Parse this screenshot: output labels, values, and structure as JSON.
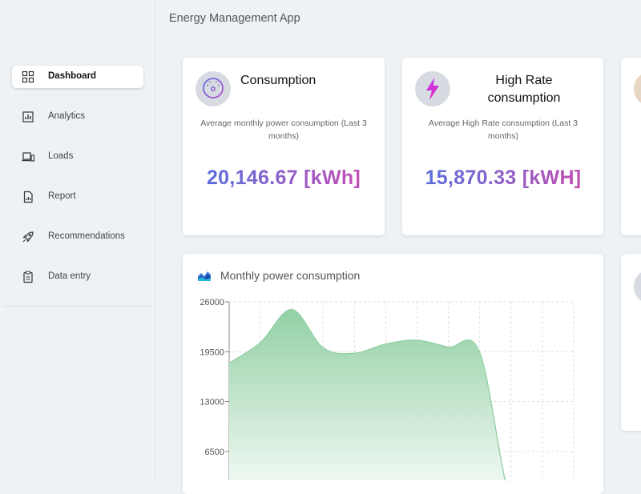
{
  "app_title": "Energy Management App",
  "sidebar": {
    "items": [
      {
        "label": "Dashboard",
        "icon": "dashboard-grid-icon",
        "active": true
      },
      {
        "label": "Analytics",
        "icon": "bar-chart-icon"
      },
      {
        "label": "Loads",
        "icon": "devices-icon"
      },
      {
        "label": "Report",
        "icon": "report-icon"
      },
      {
        "label": "Recommendations",
        "icon": "rocket-icon"
      },
      {
        "label": "Data entry",
        "icon": "clipboard-icon"
      }
    ]
  },
  "cards": [
    {
      "title": "Consumption",
      "icon": "speedometer-icon",
      "description": "Average monthly power consumption (Last 3 months)",
      "value": "20,146.67 [kWh]"
    },
    {
      "title": "High Rate consumption",
      "icon": "lightning-icon",
      "description": "Average High Rate consumption (Last 3 months)",
      "value": "15,870.33 [kWH]"
    }
  ],
  "chart": {
    "title": "Monthly power consumption",
    "icon": "area-chart-icon",
    "colors": {
      "line": "#8fd0a2",
      "fill_top": "#93d0a5",
      "fill_bottom": "#ffffff"
    }
  },
  "chart_data": {
    "type": "area",
    "title": "",
    "xlabel": "",
    "ylabel": "",
    "ylim": [
      0,
      26000
    ],
    "yticks": [
      "26000",
      "19500",
      "13000",
      "6500"
    ],
    "grid": true,
    "x": [
      0,
      1,
      2,
      3,
      4,
      5,
      6,
      7,
      8,
      9,
      10,
      11
    ],
    "values": [
      18000,
      20700,
      25000,
      20000,
      19300,
      20500,
      21000,
      20100,
      19400,
      0,
      0,
      0
    ]
  }
}
